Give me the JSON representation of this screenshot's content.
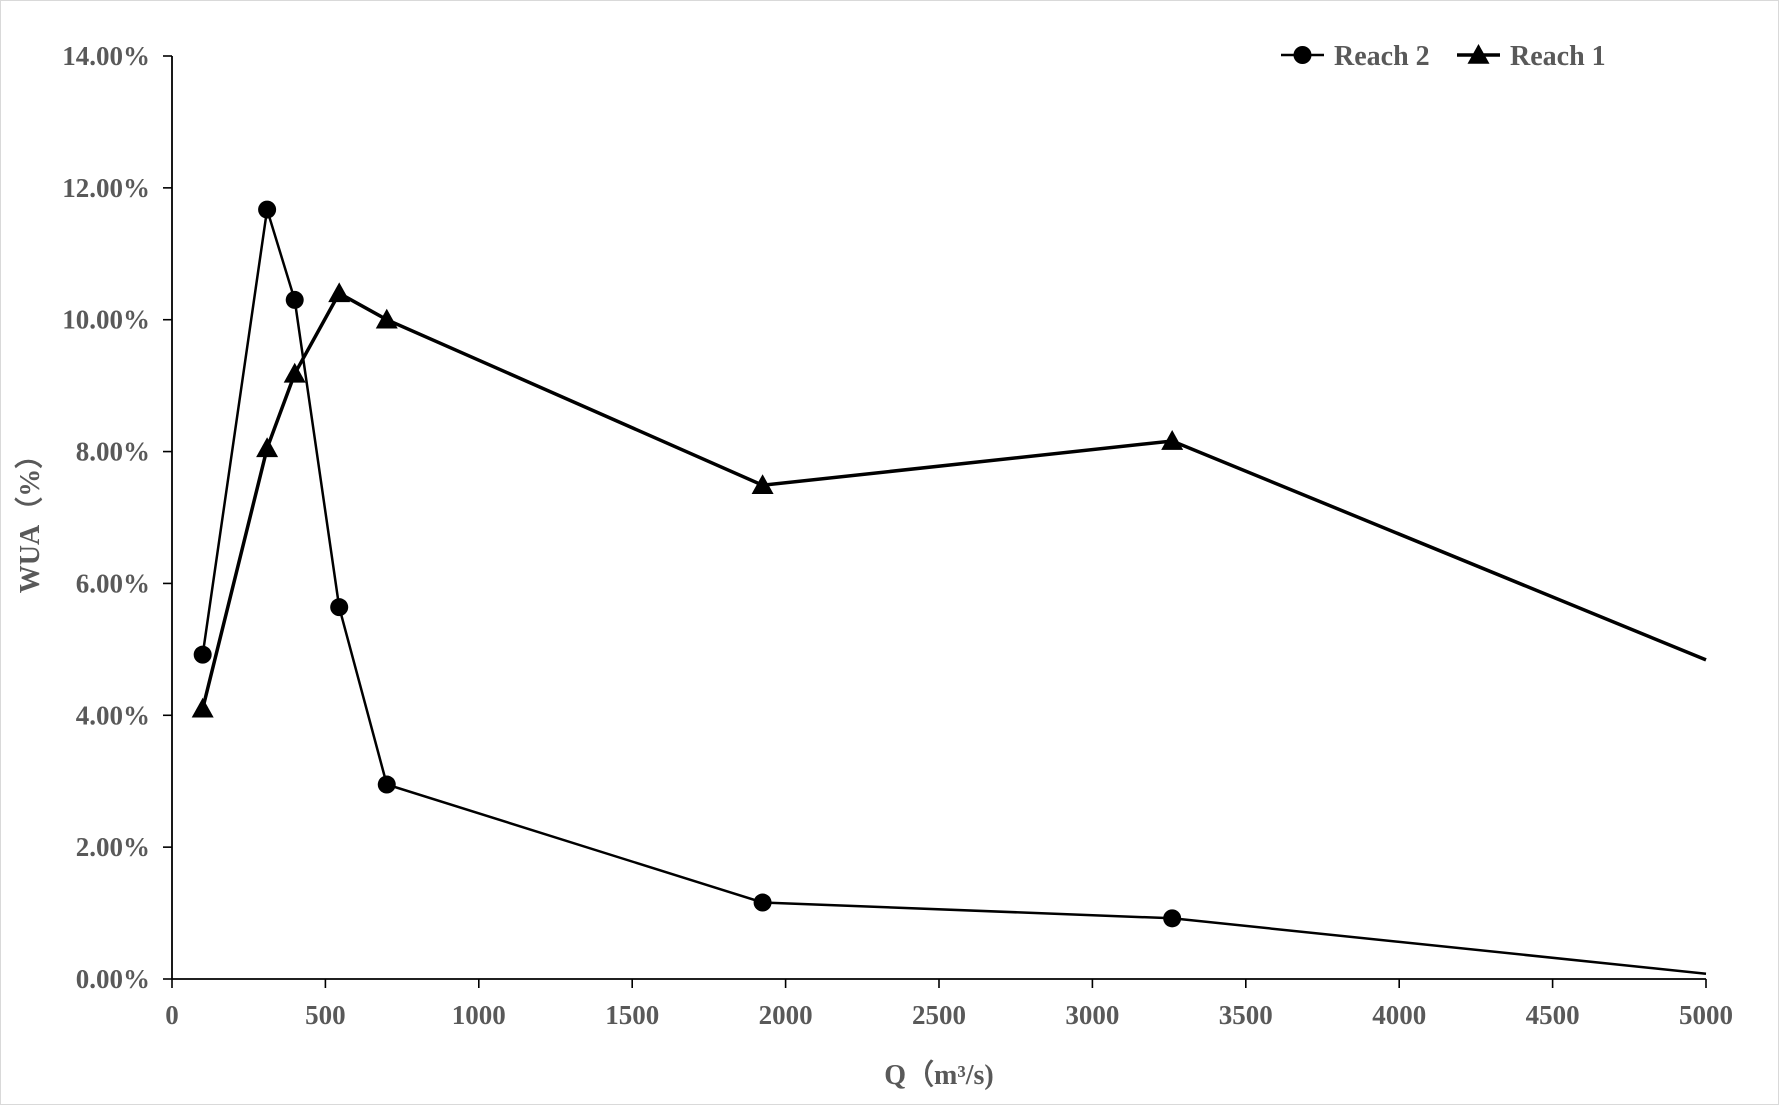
{
  "chart_data": {
    "type": "line",
    "title": "",
    "xlabel": "Q（m³/s)",
    "ylabel": "WUA（%）",
    "xlim": [
      0,
      5000
    ],
    "ylim": [
      0,
      0.14
    ],
    "x_ticks": [
      0,
      500,
      1000,
      1500,
      2000,
      2500,
      3000,
      3500,
      4000,
      4500,
      5000
    ],
    "x_tick_labels": [
      "0",
      "500",
      "1000",
      "1500",
      "2000",
      "2500",
      "3000",
      "3500",
      "4000",
      "4500",
      "5000"
    ],
    "y_ticks": [
      0,
      0.02,
      0.04,
      0.06,
      0.08,
      0.1,
      0.12,
      0.14
    ],
    "y_tick_labels": [
      "0.00%",
      "2.00%",
      "4.00%",
      "6.00%",
      "8.00%",
      "10.00%",
      "12.00%",
      "14.00%"
    ],
    "grid": false,
    "legend_position": "top-right",
    "series": [
      {
        "name": "Reach 2",
        "marker": "circle",
        "color": "#000000",
        "line_width": 2.5,
        "x": [
          100,
          310,
          400,
          545,
          700,
          1925,
          3260,
          5000
        ],
        "y": [
          0.0492,
          0.1167,
          0.103,
          0.0564,
          0.0295,
          0.0116,
          0.0092,
          0.0008
        ],
        "markers_shown": [
          true,
          true,
          true,
          true,
          true,
          true,
          true,
          false
        ]
      },
      {
        "name": "Reach 1",
        "marker": "triangle",
        "color": "#000000",
        "line_width": 3.5,
        "x": [
          100,
          310,
          400,
          545,
          700,
          1925,
          3260,
          5000
        ],
        "y": [
          0.041,
          0.0805,
          0.0918,
          0.104,
          0.1,
          0.0749,
          0.0816,
          0.0484
        ],
        "markers_shown": [
          true,
          true,
          true,
          true,
          true,
          true,
          true,
          false
        ]
      }
    ]
  }
}
